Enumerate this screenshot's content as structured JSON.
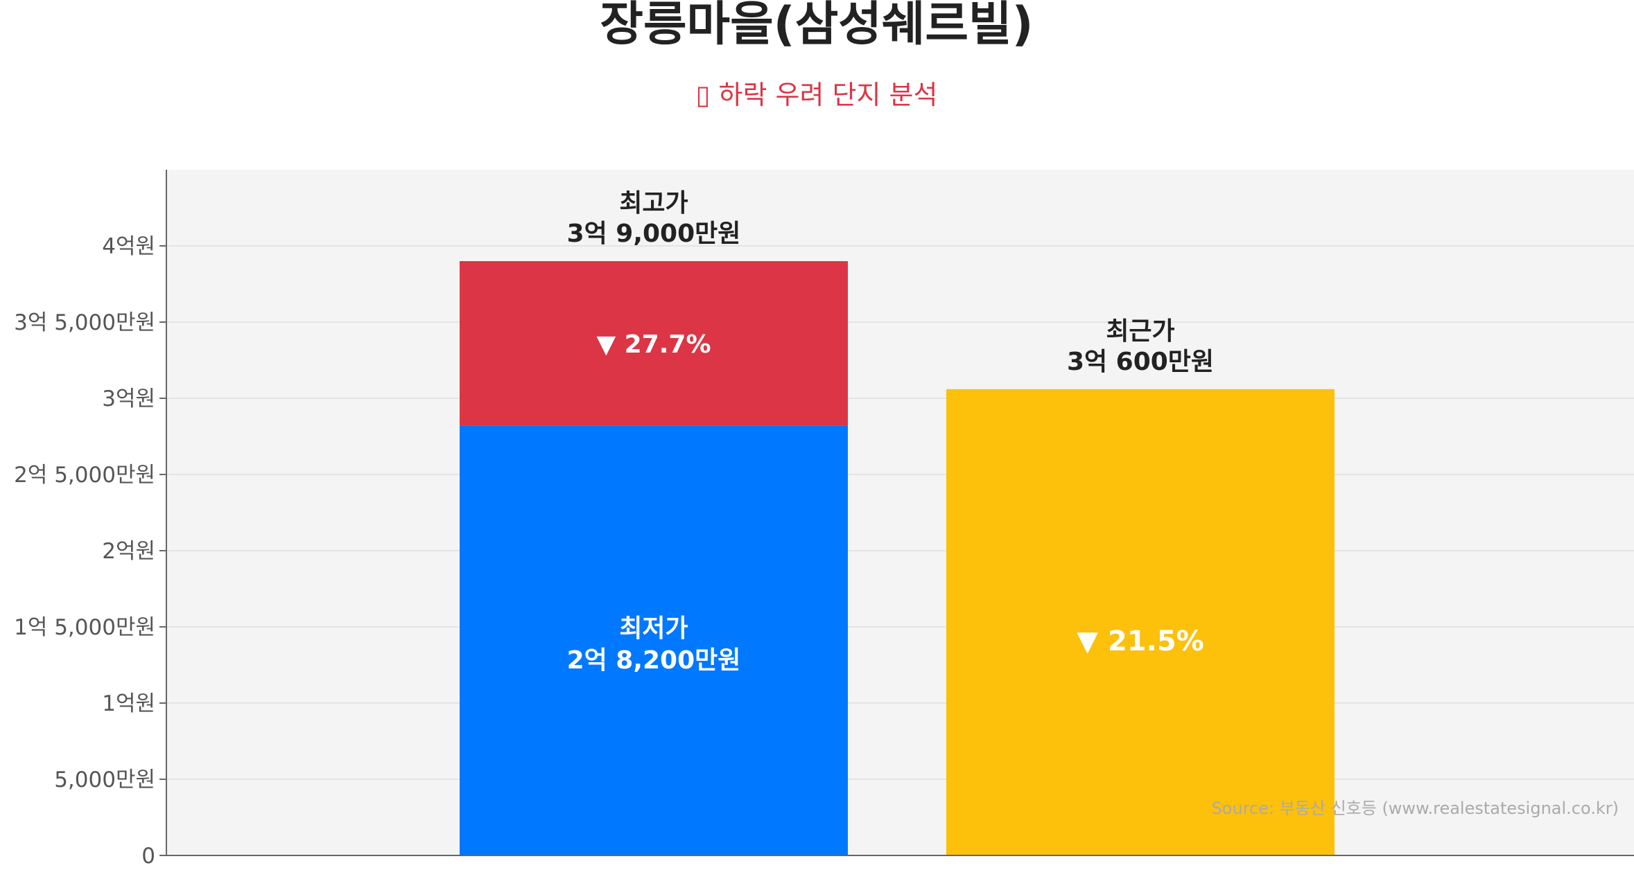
{
  "chart_data": {
    "type": "bar",
    "title": "장릉마을(삼성쉐르빌)",
    "subtitle": "▯ 하락 우려 단지 분석",
    "xlabel": "",
    "ylabel": "",
    "ylim": [
      0,
      45000
    ],
    "unit": "만원",
    "yticks": [
      {
        "value": 0,
        "label": "0"
      },
      {
        "value": 5000,
        "label": "5,000만원"
      },
      {
        "value": 10000,
        "label": "1억원"
      },
      {
        "value": 15000,
        "label": "1억 5,000만원"
      },
      {
        "value": 20000,
        "label": "2억원"
      },
      {
        "value": 25000,
        "label": "2억 5,000만원"
      },
      {
        "value": 30000,
        "label": "3억원"
      },
      {
        "value": 35000,
        "label": "3억 5,000만원"
      },
      {
        "value": 40000,
        "label": "4억원"
      }
    ],
    "bars": [
      {
        "low_value": 28200,
        "high_value": 39000,
        "low_label_title": "최저가",
        "low_label_value": "2억 8,200만원",
        "high_label_title": "최고가",
        "high_label_value": "3억 9,000만원",
        "drop_label": "▼ 27.7%",
        "low_color": "#0078ff",
        "high_color": "#dc3545"
      },
      {
        "value": 30600,
        "label_title": "최근가",
        "label_value": "3억 600만원",
        "drop_label": "▼ 21.5%",
        "color": "#fdc00b"
      }
    ],
    "grid": true,
    "legend": "none",
    "source": "Source: 부동산 신호등 (www.realestatesignal.co.kr)"
  },
  "colors": {
    "plot_background": "#f4f4f4",
    "axis": "#666666",
    "grid": "#e4e4e4"
  }
}
